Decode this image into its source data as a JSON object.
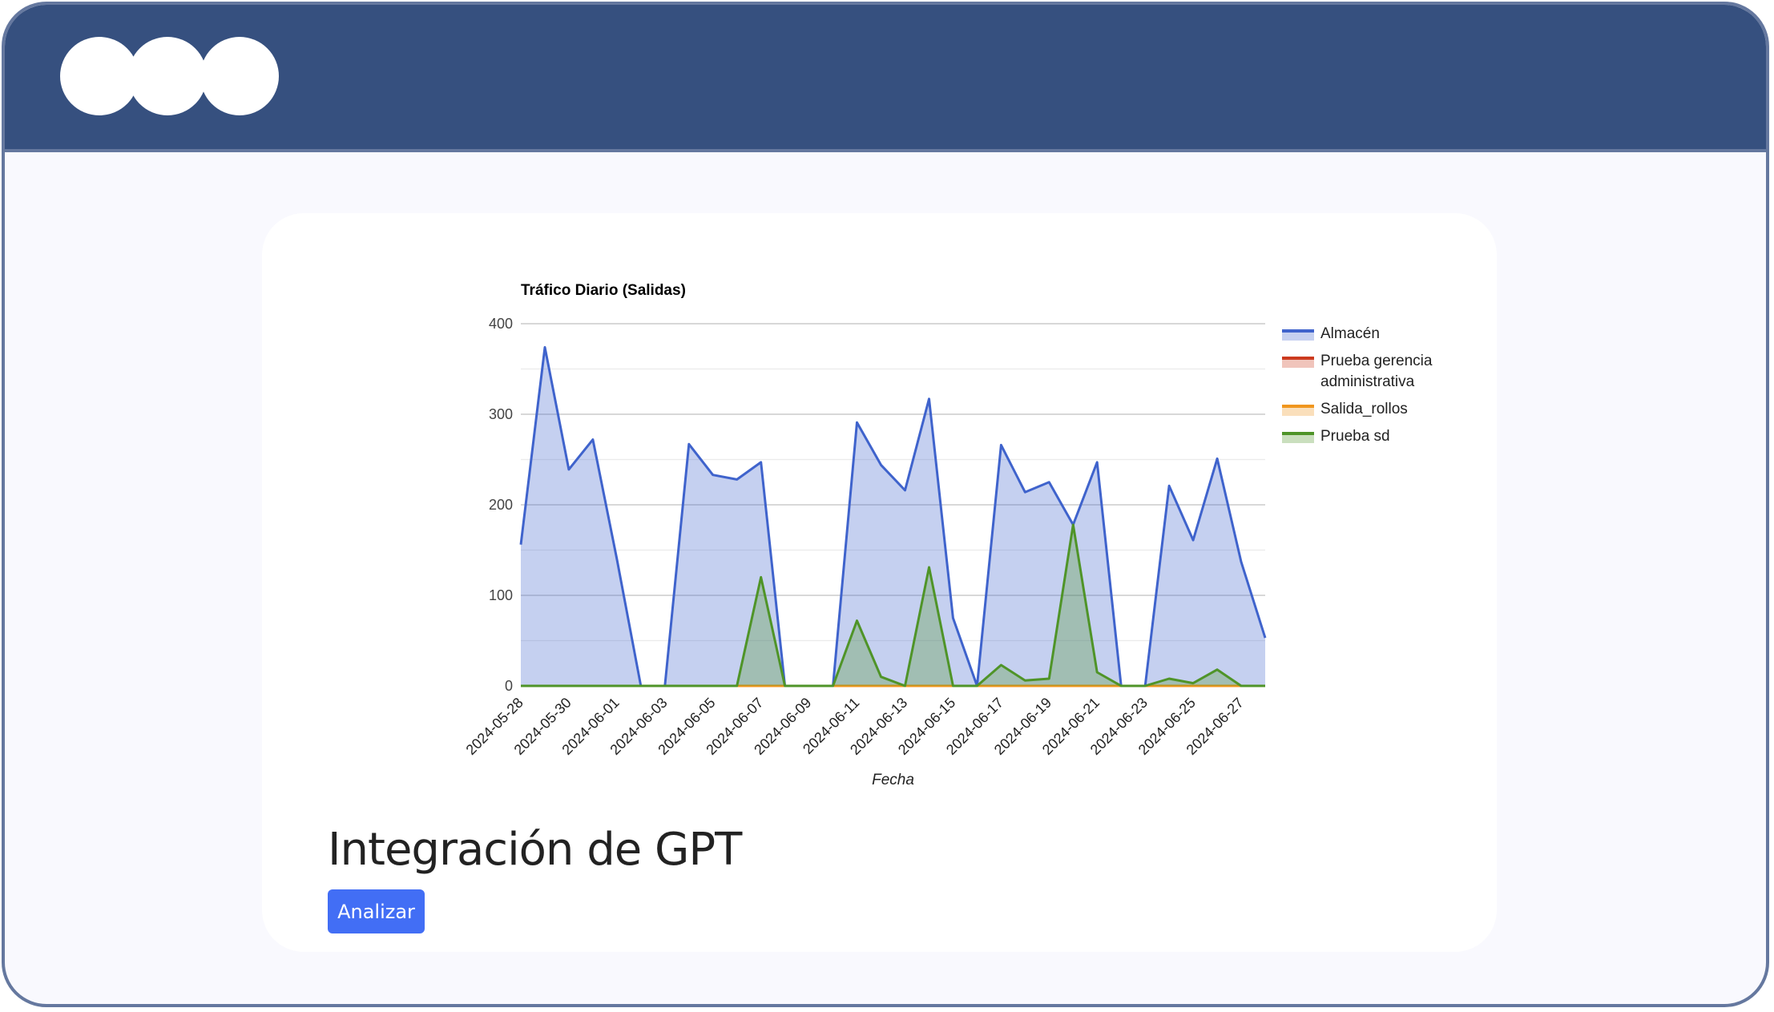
{
  "window": {
    "controls": [
      "close",
      "minimize",
      "maximize"
    ]
  },
  "colors": {
    "titlebar": "#36507f",
    "button": "#426ef5"
  },
  "chart_data": {
    "type": "area",
    "title": "Tráfico Diario (Salidas)",
    "xlabel": "Fecha",
    "ylabel": "",
    "ylim": [
      0,
      400
    ],
    "yticks": [
      "0",
      "100",
      "200",
      "300",
      "400"
    ],
    "grid": true,
    "legend_position": "right",
    "x": [
      "2024-05-28",
      "2024-05-29",
      "2024-05-30",
      "2024-05-31",
      "2024-06-01",
      "2024-06-02",
      "2024-06-03",
      "2024-06-04",
      "2024-06-05",
      "2024-06-06",
      "2024-06-07",
      "2024-06-08",
      "2024-06-09",
      "2024-06-10",
      "2024-06-11",
      "2024-06-12",
      "2024-06-13",
      "2024-06-14",
      "2024-06-15",
      "2024-06-16",
      "2024-06-17",
      "2024-06-18",
      "2024-06-19",
      "2024-06-20",
      "2024-06-21",
      "2024-06-22",
      "2024-06-23",
      "2024-06-24",
      "2024-06-25",
      "2024-06-26",
      "2024-06-27",
      "2024-06-28"
    ],
    "xticks": [
      "2024-05-28",
      "2024-05-30",
      "2024-06-01",
      "2024-06-03",
      "2024-06-05",
      "2024-06-07",
      "2024-06-09",
      "2024-06-11",
      "2024-06-13",
      "2024-06-15",
      "2024-06-17",
      "2024-06-19",
      "2024-06-21",
      "2024-06-23",
      "2024-06-25",
      "2024-06-27"
    ],
    "series": [
      {
        "name": "Almacén",
        "color": "#3f63cc",
        "values": [
          156,
          374,
          239,
          272,
          140,
          0,
          0,
          267,
          233,
          228,
          247,
          0,
          0,
          0,
          291,
          244,
          216,
          317,
          75,
          0,
          266,
          214,
          225,
          178,
          247,
          0,
          0,
          221,
          161,
          251,
          137,
          53
        ]
      },
      {
        "name": "Prueba gerencia administrativa",
        "color": "#cc3a1f",
        "values": [
          0,
          0,
          0,
          0,
          0,
          0,
          0,
          0,
          0,
          0,
          0,
          0,
          0,
          0,
          0,
          0,
          0,
          0,
          0,
          0,
          0,
          0,
          0,
          0,
          0,
          0,
          0,
          0,
          0,
          0,
          0,
          0
        ]
      },
      {
        "name": "Salida_rollos",
        "color": "#f0961e",
        "values": [
          0,
          0,
          0,
          0,
          0,
          0,
          0,
          0,
          0,
          0,
          0,
          0,
          0,
          0,
          0,
          0,
          0,
          0,
          0,
          0,
          0,
          0,
          0,
          0,
          0,
          0,
          0,
          0,
          0,
          0,
          0,
          0
        ]
      },
      {
        "name": "Prueba sd",
        "color": "#4f9428",
        "values": [
          0,
          0,
          0,
          0,
          0,
          0,
          0,
          0,
          0,
          0,
          120,
          0,
          0,
          0,
          72,
          10,
          0,
          131,
          0,
          0,
          23,
          6,
          8,
          178,
          15,
          0,
          0,
          8,
          3,
          18,
          0,
          0
        ]
      }
    ]
  },
  "legend_lines": [
    [
      "Almacén"
    ],
    [
      "Prueba gerencia",
      "administrativa"
    ],
    [
      "Salida_rollos"
    ],
    [
      "Prueba sd"
    ]
  ],
  "main": {
    "heading": "Integración de GPT",
    "analyze_label": "Analizar"
  }
}
